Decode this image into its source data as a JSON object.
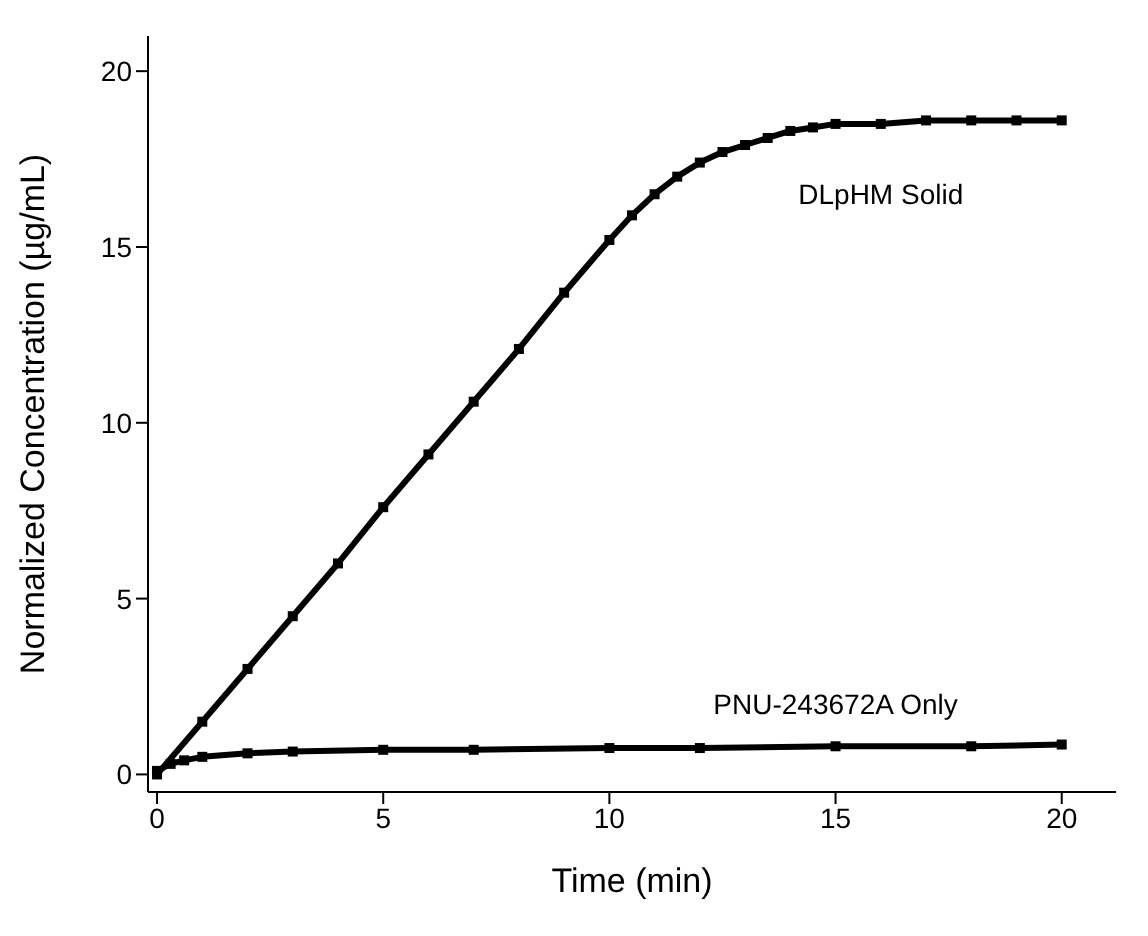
{
  "chart_data": {
    "type": "line",
    "xlabel": "Time (min)",
    "ylabel": "Normalized Concentration (µg/mL)",
    "xlim": [
      -0.2,
      21.2
    ],
    "ylim": [
      -0.5,
      21
    ],
    "xticks": [
      0,
      5,
      10,
      15,
      20
    ],
    "yticks": [
      0,
      5,
      10,
      15,
      20
    ],
    "marker": "square",
    "line_style": "solid",
    "series": [
      {
        "name": "DLpHM Solid",
        "color": "#000000",
        "x": [
          0,
          1,
          2,
          3,
          4,
          5,
          6,
          7,
          8,
          9,
          10,
          10.5,
          11,
          11.5,
          12,
          12.5,
          13,
          13.5,
          14,
          14.5,
          15,
          16,
          17,
          18,
          19,
          20
        ],
        "values": [
          0,
          1.5,
          3,
          4.5,
          6,
          7.6,
          9.1,
          10.6,
          12.1,
          13.7,
          15.2,
          15.9,
          16.5,
          17,
          17.4,
          17.7,
          17.9,
          18.1,
          18.3,
          18.4,
          18.5,
          18.5,
          18.6,
          18.6,
          18.6,
          18.6
        ]
      },
      {
        "name": "PNU-243672A Only",
        "color": "#000000",
        "x": [
          0,
          0.3,
          0.6,
          1,
          2,
          3,
          5,
          7,
          10,
          12,
          15,
          18,
          20
        ],
        "values": [
          0.1,
          0.3,
          0.4,
          0.5,
          0.6,
          0.65,
          0.7,
          0.7,
          0.75,
          0.75,
          0.8,
          0.8,
          0.85
        ]
      }
    ]
  }
}
